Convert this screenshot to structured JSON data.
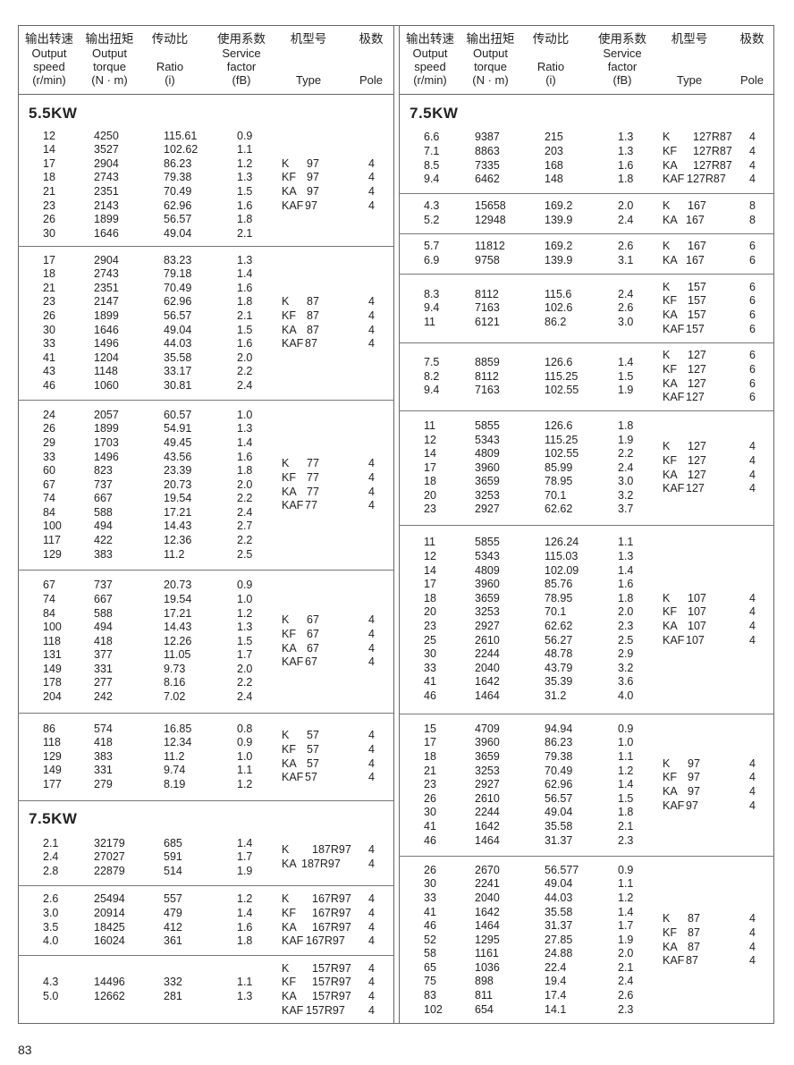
{
  "header": {
    "columns": [
      {
        "cn": "输出转速",
        "en": [
          "Output",
          "speed",
          "(r/min)"
        ]
      },
      {
        "cn": "输出扭矩",
        "en": [
          "Output",
          "torque",
          "(N · m)"
        ]
      },
      {
        "cn": "传动比",
        "en": [
          "",
          "Ratio",
          "(i)"
        ]
      },
      {
        "cn": "使用系数",
        "en": [
          "Service",
          "factor",
          "(fB)"
        ]
      },
      {
        "cn": "机型号",
        "en": [
          "",
          "",
          "Type"
        ]
      },
      {
        "cn": "极数",
        "en": [
          "",
          "",
          "Pole"
        ]
      }
    ]
  },
  "left": {
    "groups": [
      {
        "title": "5.5KW",
        "rows": [
          [
            "12",
            "4250",
            "115.61",
            "0.9"
          ],
          [
            "14",
            "3527",
            "102.62",
            "1.1"
          ],
          [
            "17",
            "2904",
            "86.23",
            "1.2"
          ],
          [
            "18",
            "2743",
            "79.38",
            "1.3"
          ],
          [
            "21",
            "2351",
            "70.49",
            "1.5"
          ],
          [
            "23",
            "2143",
            "62.96",
            "1.6"
          ],
          [
            "26",
            "1899",
            "56.57",
            "1.8"
          ],
          [
            "30",
            "1646",
            "49.04",
            "2.1"
          ]
        ],
        "types": [
          [
            "K",
            "97",
            "4"
          ],
          [
            "KF",
            "97",
            "4"
          ],
          [
            "KA",
            "97",
            "4"
          ],
          [
            "KAF",
            "97",
            "4"
          ]
        ]
      },
      {
        "title": "",
        "rows": [
          [
            "17",
            "2904",
            "83.23",
            "1.3"
          ],
          [
            "18",
            "2743",
            "79.18",
            "1.4"
          ],
          [
            "21",
            "2351",
            "70.49",
            "1.6"
          ],
          [
            "23",
            "2147",
            "62.96",
            "1.8"
          ],
          [
            "26",
            "1899",
            "56.57",
            "2.1"
          ],
          [
            "30",
            "1646",
            "49.04",
            "1.5"
          ],
          [
            "33",
            "1496",
            "44.03",
            "1.6"
          ],
          [
            "41",
            "1204",
            "35.58",
            "2.0"
          ],
          [
            "43",
            "1148",
            "33.17",
            "2.2"
          ],
          [
            "46",
            "1060",
            "30.81",
            "2.4"
          ]
        ],
        "types": [
          [
            "K",
            "87",
            "4"
          ],
          [
            "KF",
            "87",
            "4"
          ],
          [
            "KA",
            "87",
            "4"
          ],
          [
            "KAF",
            "87",
            "4"
          ]
        ]
      },
      {
        "title": "",
        "rows": [
          [
            "24",
            "2057",
            "60.57",
            "1.0"
          ],
          [
            "26",
            "1899",
            "54.91",
            "1.3"
          ],
          [
            "29",
            "1703",
            "49.45",
            "1.4"
          ],
          [
            "33",
            "1496",
            "43.56",
            "1.6"
          ],
          [
            "60",
            "823",
            "23.39",
            "1.8"
          ],
          [
            "67",
            "737",
            "20.73",
            "2.0"
          ],
          [
            "74",
            "667",
            "19.54",
            "2.2"
          ],
          [
            "84",
            "588",
            "17.21",
            "2.4"
          ],
          [
            "100",
            "494",
            "14.43",
            "2.7"
          ],
          [
            "117",
            "422",
            "12.36",
            "2.2"
          ],
          [
            "129",
            "383",
            "11.2",
            "2.5"
          ]
        ],
        "types": [
          [
            "K",
            "77",
            "4"
          ],
          [
            "KF",
            "77",
            "4"
          ],
          [
            "KA",
            "77",
            "4"
          ],
          [
            "KAF",
            "77",
            "4"
          ]
        ]
      },
      {
        "title": "",
        "rows": [
          [
            "67",
            "737",
            "20.73",
            "0.9"
          ],
          [
            "74",
            "667",
            "19.54",
            "1.0"
          ],
          [
            "84",
            "588",
            "17.21",
            "1.2"
          ],
          [
            "100",
            "494",
            "14.43",
            "1.3"
          ],
          [
            "118",
            "418",
            "12.26",
            "1.5"
          ],
          [
            "131",
            "377",
            "11.05",
            "1.7"
          ],
          [
            "149",
            "331",
            "9.73",
            "2.0"
          ],
          [
            "178",
            "277",
            "8.16",
            "2.2"
          ],
          [
            "204",
            "242",
            "7.02",
            "2.4"
          ]
        ],
        "types": [
          [
            "K",
            "67",
            "4"
          ],
          [
            "KF",
            "67",
            "4"
          ],
          [
            "KA",
            "67",
            "4"
          ],
          [
            "KAF",
            "67",
            "4"
          ]
        ]
      },
      {
        "title": "",
        "rows": [
          [
            "86",
            "574",
            "16.85",
            "0.8"
          ],
          [
            "118",
            "418",
            "12.34",
            "0.9"
          ],
          [
            "129",
            "383",
            "11.2",
            "1.0"
          ],
          [
            "149",
            "331",
            "9.74",
            "1.1"
          ],
          [
            "177",
            "279",
            "8.19",
            "1.2"
          ]
        ],
        "types": [
          [
            "K",
            "57",
            "4"
          ],
          [
            "KF",
            "57",
            "4"
          ],
          [
            "KA",
            "57",
            "4"
          ],
          [
            "KAF",
            "57",
            "4"
          ]
        ]
      },
      {
        "title": "7.5KW",
        "rows": [
          [
            "2.1",
            "32179",
            "685",
            "1.4"
          ],
          [
            "2.4",
            "27027",
            "591",
            "1.7"
          ],
          [
            "2.8",
            "22879",
            "514",
            "1.9"
          ]
        ],
        "types": [
          [
            "K",
            "187R97",
            "4"
          ],
          [
            "KA",
            "187R97",
            "4"
          ]
        ]
      },
      {
        "title": "",
        "rows": [
          [
            "2.6",
            "25494",
            "557",
            "1.2"
          ],
          [
            "3.0",
            "20914",
            "479",
            "1.4"
          ],
          [
            "3.5",
            "18425",
            "412",
            "1.6"
          ],
          [
            "4.0",
            "16024",
            "361",
            "1.8"
          ]
        ],
        "types": [
          [
            "K",
            "167R97",
            "4"
          ],
          [
            "KF",
            "167R97",
            "4"
          ],
          [
            "KA",
            "167R97",
            "4"
          ],
          [
            "KAF",
            "167R97",
            "4"
          ]
        ]
      },
      {
        "title": "",
        "rows": [
          [
            "4.3",
            "14496",
            "332",
            "1.1"
          ],
          [
            "5.0",
            "12662",
            "281",
            "1.3"
          ]
        ],
        "types": [
          [
            "K",
            "157R97",
            "4"
          ],
          [
            "KF",
            "157R97",
            "4"
          ],
          [
            "KA",
            "157R97",
            "4"
          ],
          [
            "KAF",
            "157R97",
            "4"
          ]
        ]
      }
    ]
  },
  "right": {
    "groups": [
      {
        "title": "7.5KW",
        "rows": [
          [
            "6.6",
            "9387",
            "215",
            "1.3"
          ],
          [
            "7.1",
            "8863",
            "203",
            "1.3"
          ],
          [
            "8.5",
            "7335",
            "168",
            "1.6"
          ],
          [
            "9.4",
            "6462",
            "148",
            "1.8"
          ]
        ],
        "types": [
          [
            "K",
            "127R87",
            "4"
          ],
          [
            "KF",
            "127R87",
            "4"
          ],
          [
            "KA",
            "127R87",
            "4"
          ],
          [
            "KAF",
            "127R87",
            "4"
          ]
        ]
      },
      {
        "title": "",
        "rows": [
          [
            "4.3",
            "15658",
            "169.2",
            "2.0"
          ],
          [
            "5.2",
            "12948",
            "139.9",
            "2.4"
          ]
        ],
        "types": [
          [
            "K",
            "167",
            "8"
          ],
          [
            "KA",
            "167",
            "8"
          ]
        ]
      },
      {
        "title": "",
        "rows": [
          [
            "5.7",
            "11812",
            "169.2",
            "2.6"
          ],
          [
            "6.9",
            "9758",
            "139.9",
            "3.1"
          ]
        ],
        "types": [
          [
            "K",
            "167",
            "6"
          ],
          [
            "KA",
            "167",
            "6"
          ]
        ]
      },
      {
        "title": "",
        "rows": [
          [
            "8.3",
            "8112",
            "115.6",
            "2.4"
          ],
          [
            "9.4",
            "7163",
            "102.6",
            "2.6"
          ],
          [
            "11",
            "6121",
            "86.2",
            "3.0"
          ]
        ],
        "types": [
          [
            "K",
            "157",
            "6"
          ],
          [
            "KF",
            "157",
            "6"
          ],
          [
            "KA",
            "157",
            "6"
          ],
          [
            "KAF",
            "157",
            "6"
          ]
        ]
      },
      {
        "title": "",
        "rows": [
          [
            "7.5",
            "8859",
            "126.6",
            "1.4"
          ],
          [
            "8.2",
            "8112",
            "115.25",
            "1.5"
          ],
          [
            "9.4",
            "7163",
            "102.55",
            "1.9"
          ]
        ],
        "types": [
          [
            "K",
            "127",
            "6"
          ],
          [
            "KF",
            "127",
            "6"
          ],
          [
            "KA",
            "127",
            "6"
          ],
          [
            "KAF",
            "127",
            "6"
          ]
        ]
      },
      {
        "title": "",
        "rows": [
          [
            "11",
            "5855",
            "126.6",
            "1.8"
          ],
          [
            "12",
            "5343",
            "115.25",
            "1.9"
          ],
          [
            "14",
            "4809",
            "102.55",
            "2.2"
          ],
          [
            "17",
            "3960",
            "85.99",
            "2.4"
          ],
          [
            "18",
            "3659",
            "78.95",
            "3.0"
          ],
          [
            "20",
            "3253",
            "70.1",
            "3.2"
          ],
          [
            "23",
            "2927",
            "62.62",
            "3.7"
          ]
        ],
        "types": [
          [
            "K",
            "127",
            "4"
          ],
          [
            "KF",
            "127",
            "4"
          ],
          [
            "KA",
            "127",
            "4"
          ],
          [
            "KAF",
            "127",
            "4"
          ]
        ]
      },
      {
        "title": "",
        "rows": [
          [
            "11",
            "5855",
            "126.24",
            "1.1"
          ],
          [
            "12",
            "5343",
            "115.03",
            "1.3"
          ],
          [
            "14",
            "4809",
            "102.09",
            "1.4"
          ],
          [
            "17",
            "3960",
            "85.76",
            "1.6"
          ],
          [
            "18",
            "3659",
            "78.95",
            "1.8"
          ],
          [
            "20",
            "3253",
            "70.1",
            "2.0"
          ],
          [
            "23",
            "2927",
            "62.62",
            "2.3"
          ],
          [
            "25",
            "2610",
            "56.27",
            "2.5"
          ],
          [
            "30",
            "2244",
            "48.78",
            "2.9"
          ],
          [
            "33",
            "2040",
            "43.79",
            "3.2"
          ],
          [
            "41",
            "1642",
            "35.39",
            "3.6"
          ],
          [
            "46",
            "1464",
            "31.2",
            "4.0"
          ]
        ],
        "types": [
          [
            "K",
            "107",
            "4"
          ],
          [
            "KF",
            "107",
            "4"
          ],
          [
            "KA",
            "107",
            "4"
          ],
          [
            "KAF",
            "107",
            "4"
          ]
        ]
      },
      {
        "title": "",
        "rows": [
          [
            "15",
            "4709",
            "94.94",
            "0.9"
          ],
          [
            "17",
            "3960",
            "86.23",
            "1.0"
          ],
          [
            "18",
            "3659",
            "79.38",
            "1.1"
          ],
          [
            "21",
            "3253",
            "70.49",
            "1.2"
          ],
          [
            "23",
            "2927",
            "62.96",
            "1.4"
          ],
          [
            "26",
            "2610",
            "56.57",
            "1.5"
          ],
          [
            "30",
            "2244",
            "49.04",
            "1.8"
          ],
          [
            "41",
            "1642",
            "35.58",
            "2.1"
          ],
          [
            "46",
            "1464",
            "31.37",
            "2.3"
          ]
        ],
        "types": [
          [
            "K",
            "97",
            "4"
          ],
          [
            "KF",
            "97",
            "4"
          ],
          [
            "KA",
            "97",
            "4"
          ],
          [
            "KAF",
            "97",
            "4"
          ]
        ]
      },
      {
        "title": "",
        "rows": [
          [
            "26",
            "2670",
            "56.577",
            "0.9"
          ],
          [
            "30",
            "2241",
            "49.04",
            "1.1"
          ],
          [
            "33",
            "2040",
            "44.03",
            "1.2"
          ],
          [
            "41",
            "1642",
            "35.58",
            "1.4"
          ],
          [
            "46",
            "1464",
            "31.37",
            "1.7"
          ],
          [
            "52",
            "1295",
            "27.85",
            "1.9"
          ],
          [
            "58",
            "1161",
            "24.88",
            "2.0"
          ],
          [
            "65",
            "1036",
            "22.4",
            "2.1"
          ],
          [
            "75",
            "898",
            "19.4",
            "2.4"
          ],
          [
            "83",
            "811",
            "17.4",
            "2.6"
          ],
          [
            "102",
            "654",
            "14.1",
            "2.3"
          ]
        ],
        "types": [
          [
            "K",
            "87",
            "4"
          ],
          [
            "KF",
            "87",
            "4"
          ],
          [
            "KA",
            "87",
            "4"
          ],
          [
            "KAF",
            "87",
            "4"
          ]
        ]
      }
    ]
  },
  "page_number": "83"
}
